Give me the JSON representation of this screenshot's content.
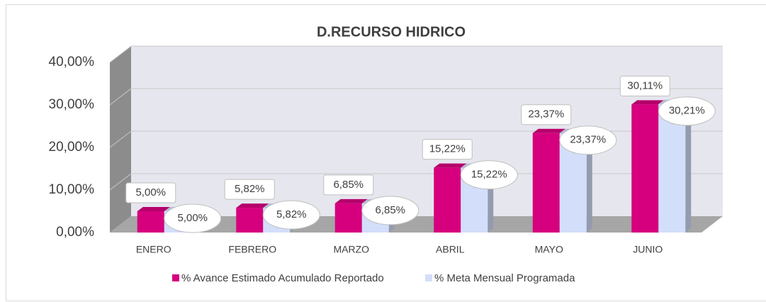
{
  "chart_data": {
    "type": "bar3d",
    "title": "D.RECURSO HIDRICO",
    "categories": [
      "ENERO",
      "FEBRERO",
      "MARZO",
      "ABRIL",
      "MAYO",
      "JUNIO"
    ],
    "series": [
      {
        "name": "% Avance Estimado Acumulado Reportado",
        "color": "#d6007e",
        "values": [
          5.0,
          5.82,
          6.85,
          15.22,
          23.37,
          30.11
        ],
        "value_labels": [
          "5,00%",
          "5,82%",
          "6,85%",
          "15,22%",
          "23,37%",
          "30,11%"
        ]
      },
      {
        "name": "% Meta Mensual Programada",
        "color": "#d3defa",
        "values": [
          5.0,
          5.82,
          6.85,
          15.22,
          23.37,
          30.21
        ],
        "value_labels": [
          "5,00%",
          "5,82%",
          "6,85%",
          "15,22%",
          "23,37%",
          "30,21%"
        ]
      }
    ],
    "ylim": [
      0,
      40
    ],
    "yticks": [
      {
        "value": 0,
        "label": "0,00%"
      },
      {
        "value": 10,
        "label": "10,00%"
      },
      {
        "value": 20,
        "label": "20,00%"
      },
      {
        "value": 30,
        "label": "30,00%"
      },
      {
        "value": 40,
        "label": "40,00%"
      }
    ],
    "grid": true,
    "legend": "bottom"
  }
}
